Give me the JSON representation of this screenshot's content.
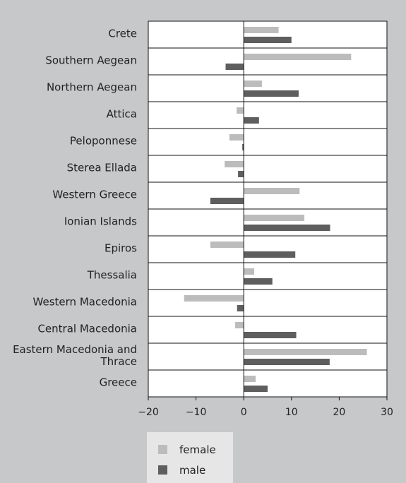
{
  "chart_data": {
    "type": "bar",
    "orientation": "horizontal",
    "categories": [
      "Crete",
      "Southern Aegean",
      "Northern Aegean",
      "Attica",
      "Peloponnese",
      "Sterea Ellada",
      "Western Greece",
      "Ionian Islands",
      "Epiros",
      "Thessalia",
      "Western Macedonia",
      "Central Macedonia",
      "Eastern Macedonia and Thrace",
      "Greece"
    ],
    "series": [
      {
        "name": "female",
        "color": "#bcbcbc",
        "values": [
          7.3,
          22.5,
          3.8,
          -1.5,
          -3,
          -4,
          11.7,
          12.7,
          -7,
          2.2,
          -12.5,
          -1.8,
          25.8,
          2.5
        ]
      },
      {
        "name": "male",
        "color": "#5e5e5e",
        "values": [
          10,
          -3.8,
          11.5,
          3.2,
          -0.3,
          -1.2,
          -7,
          18.1,
          10.8,
          6,
          -1.4,
          11,
          18,
          5
        ]
      }
    ],
    "xlim": [
      -20,
      30
    ],
    "xticks": [
      {
        "value": -20,
        "label": "−20"
      },
      {
        "value": -10,
        "label": "−10"
      },
      0,
      10,
      20,
      30
    ]
  }
}
